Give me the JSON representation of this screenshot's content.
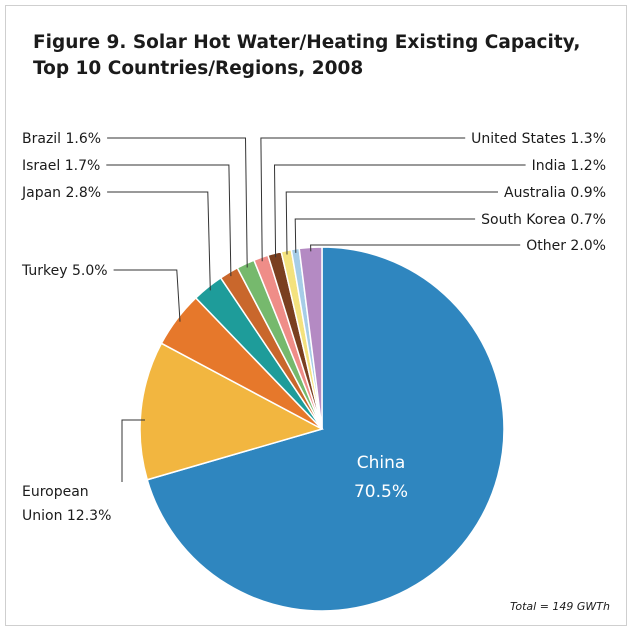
{
  "chart_data": {
    "type": "pie",
    "title": [
      "Figure 9. Solar Hot Water/Heating Existing Capacity,",
      "Top 10 Countries/Regions, 2008"
    ],
    "slices": [
      {
        "name": "China",
        "value": 70.5,
        "label": "70.5%",
        "color": "#2f86bf"
      },
      {
        "name": "European Union",
        "value": 12.3,
        "label": "12.3%",
        "color": "#f2b640"
      },
      {
        "name": "Turkey",
        "value": 5.0,
        "label": "5.0%",
        "color": "#e6782b"
      },
      {
        "name": "Japan",
        "value": 2.8,
        "label": "2.8%",
        "color": "#1e9c9a"
      },
      {
        "name": "Israel",
        "value": 1.7,
        "label": "1.7%",
        "color": "#c9672c"
      },
      {
        "name": "Brazil",
        "value": 1.6,
        "label": "1.6%",
        "color": "#76b96d"
      },
      {
        "name": "United States",
        "value": 1.3,
        "label": "1.3%",
        "color": "#ef8d88"
      },
      {
        "name": "India",
        "value": 1.2,
        "label": "1.2%",
        "color": "#7a3f20"
      },
      {
        "name": "Australia",
        "value": 0.9,
        "label": "0.9%",
        "color": "#f4e27e"
      },
      {
        "name": "South Korea",
        "value": 0.7,
        "label": "0.7%",
        "color": "#a6cde7"
      },
      {
        "name": "Other",
        "value": 2.0,
        "label": "2.0%",
        "color": "#b48ac3"
      }
    ],
    "annotation": "Total = 149 GWTh"
  }
}
